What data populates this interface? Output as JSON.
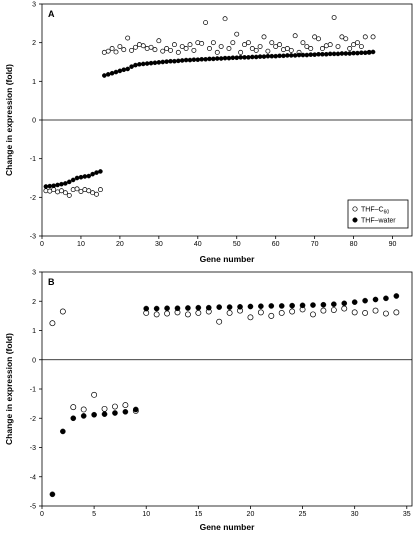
{
  "chart_data": [
    {
      "type": "scatter",
      "panel_label": "A",
      "xlabel": "Gene number",
      "ylabel": "Change in expression (fold)",
      "xlim": [
        0,
        95
      ],
      "ylim": [
        -3,
        3
      ],
      "xticks": [
        0,
        10,
        20,
        30,
        40,
        50,
        60,
        70,
        80,
        90
      ],
      "yticks": [
        -3,
        -2,
        -1,
        0,
        1,
        2,
        3
      ],
      "legend_position": "bottom-right",
      "series": [
        {
          "name": "THF–C60",
          "name_main": "THF–C",
          "name_sub": "60",
          "marker": "open-circle",
          "color": "#000000",
          "x": [
            1,
            2,
            3,
            4,
            5,
            6,
            7,
            8,
            9,
            10,
            11,
            12,
            13,
            14,
            15,
            16,
            17,
            18,
            19,
            20,
            21,
            22,
            23,
            24,
            25,
            26,
            27,
            28,
            29,
            30,
            31,
            32,
            33,
            34,
            35,
            36,
            37,
            38,
            39,
            40,
            41,
            42,
            43,
            44,
            45,
            46,
            47,
            48,
            49,
            50,
            51,
            52,
            53,
            54,
            55,
            56,
            57,
            58,
            59,
            60,
            61,
            62,
            63,
            64,
            65,
            66,
            67,
            68,
            69,
            70,
            71,
            72,
            73,
            74,
            75,
            76,
            77,
            78,
            79,
            80,
            81,
            82,
            83,
            84,
            85
          ],
          "y": [
            -1.83,
            -1.84,
            -1.8,
            -1.86,
            -1.83,
            -1.88,
            -1.95,
            -1.8,
            -1.78,
            -1.85,
            -1.8,
            -1.83,
            -1.88,
            -1.92,
            -1.8,
            1.75,
            1.78,
            1.85,
            1.76,
            1.9,
            1.82,
            2.12,
            1.8,
            1.88,
            1.95,
            1.92,
            1.85,
            1.88,
            1.82,
            2.05,
            1.78,
            1.85,
            1.8,
            1.95,
            1.75,
            1.9,
            1.85,
            1.95,
            1.8,
            2.0,
            1.98,
            2.52,
            1.85,
            2.0,
            1.75,
            1.9,
            2.62,
            1.85,
            2.0,
            2.22,
            1.75,
            1.95,
            2.0,
            1.85,
            1.8,
            1.9,
            2.15,
            1.78,
            2.0,
            1.9,
            1.95,
            1.82,
            1.85,
            1.8,
            2.18,
            1.75,
            2.0,
            1.9,
            1.85,
            2.15,
            2.1,
            1.85,
            1.92,
            1.95,
            2.65,
            1.9,
            2.15,
            2.1,
            1.85,
            1.95,
            2.0,
            1.9,
            2.15,
            1.75,
            2.15
          ]
        },
        {
          "name": "THF–water",
          "marker": "filled-circle",
          "color": "#000000",
          "x": [
            1,
            2,
            3,
            4,
            5,
            6,
            7,
            8,
            9,
            10,
            11,
            12,
            13,
            14,
            15,
            16,
            17,
            18,
            19,
            20,
            21,
            22,
            23,
            24,
            25,
            26,
            27,
            28,
            29,
            30,
            31,
            32,
            33,
            34,
            35,
            36,
            37,
            38,
            39,
            40,
            41,
            42,
            43,
            44,
            45,
            46,
            47,
            48,
            49,
            50,
            51,
            52,
            53,
            54,
            55,
            56,
            57,
            58,
            59,
            60,
            61,
            62,
            63,
            64,
            65,
            66,
            67,
            68,
            69,
            70,
            71,
            72,
            73,
            74,
            75,
            76,
            77,
            78,
            79,
            80,
            81,
            82,
            83,
            84,
            85
          ],
          "y": [
            -1.72,
            -1.71,
            -1.7,
            -1.68,
            -1.66,
            -1.64,
            -1.6,
            -1.55,
            -1.5,
            -1.48,
            -1.46,
            -1.45,
            -1.4,
            -1.36,
            -1.33,
            1.15,
            1.18,
            1.21,
            1.24,
            1.27,
            1.3,
            1.32,
            1.38,
            1.42,
            1.44,
            1.45,
            1.46,
            1.47,
            1.48,
            1.49,
            1.5,
            1.51,
            1.52,
            1.52,
            1.53,
            1.54,
            1.55,
            1.55,
            1.56,
            1.56,
            1.57,
            1.57,
            1.58,
            1.58,
            1.59,
            1.59,
            1.6,
            1.6,
            1.61,
            1.61,
            1.62,
            1.62,
            1.62,
            1.63,
            1.63,
            1.64,
            1.64,
            1.65,
            1.65,
            1.65,
            1.66,
            1.66,
            1.67,
            1.67,
            1.67,
            1.68,
            1.68,
            1.68,
            1.69,
            1.69,
            1.7,
            1.7,
            1.7,
            1.71,
            1.71,
            1.71,
            1.72,
            1.72,
            1.72,
            1.73,
            1.73,
            1.74,
            1.74,
            1.75,
            1.76
          ]
        }
      ]
    },
    {
      "type": "scatter",
      "panel_label": "B",
      "xlabel": "Gene number",
      "ylabel": "Change in expression (fold)",
      "xlim": [
        0,
        35.5
      ],
      "ylim": [
        -5,
        3
      ],
      "xticks": [
        0,
        5,
        10,
        15,
        20,
        25,
        30,
        35
      ],
      "yticks": [
        -5,
        -4,
        -3,
        -2,
        -1,
        0,
        1,
        2,
        3
      ],
      "series": [
        {
          "name": "THF–C60",
          "marker": "open-circle",
          "color": "#000000",
          "x": [
            1,
            2,
            3,
            4,
            5,
            6,
            7,
            8,
            9,
            10,
            11,
            12,
            13,
            14,
            15,
            16,
            17,
            18,
            19,
            20,
            21,
            22,
            23,
            24,
            25,
            26,
            27,
            28,
            29,
            30,
            31,
            32,
            33,
            34
          ],
          "y": [
            1.25,
            1.65,
            -1.62,
            -1.7,
            -1.2,
            -1.68,
            -1.6,
            -1.55,
            -1.75,
            1.6,
            1.55,
            1.58,
            1.62,
            1.55,
            1.6,
            1.65,
            1.3,
            1.6,
            1.68,
            1.45,
            1.62,
            1.5,
            1.6,
            1.65,
            1.72,
            1.55,
            1.68,
            1.7,
            1.75,
            1.62,
            1.6,
            1.68,
            1.58,
            1.62
          ]
        },
        {
          "name": "THF–water",
          "marker": "filled-circle",
          "color": "#000000",
          "x": [
            1,
            2,
            3,
            4,
            5,
            6,
            7,
            8,
            9,
            10,
            11,
            12,
            13,
            14,
            15,
            16,
            17,
            18,
            19,
            20,
            21,
            22,
            23,
            24,
            25,
            26,
            27,
            28,
            29,
            30,
            31,
            32,
            33,
            34
          ],
          "y": [
            -4.6,
            -2.45,
            -2.0,
            -1.92,
            -1.88,
            -1.86,
            -1.82,
            -1.78,
            -1.7,
            1.75,
            1.75,
            1.76,
            1.76,
            1.77,
            1.78,
            1.78,
            1.8,
            1.8,
            1.81,
            1.82,
            1.83,
            1.84,
            1.84,
            1.85,
            1.86,
            1.87,
            1.88,
            1.9,
            1.93,
            1.97,
            2.02,
            2.06,
            2.1,
            2.18
          ]
        }
      ]
    }
  ]
}
